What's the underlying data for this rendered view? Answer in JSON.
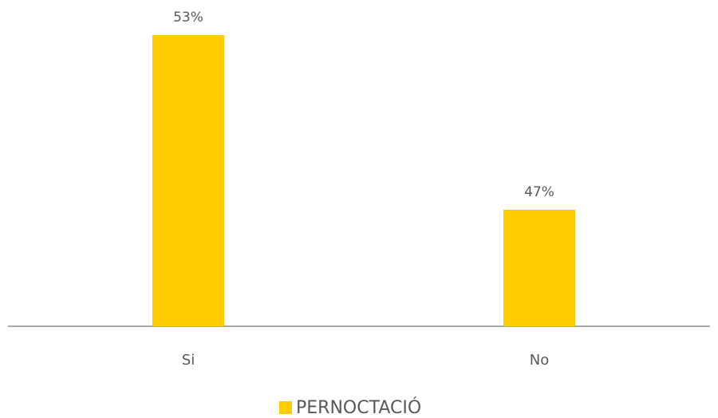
{
  "chart_data": {
    "type": "bar",
    "categories": [
      "Si",
      "No"
    ],
    "series": [
      {
        "name": "PERNOCTACIÓ",
        "color": "#ffcc00",
        "values": [
          53,
          47
        ],
        "value_labels": [
          "53%",
          "47%"
        ]
      }
    ],
    "ylim": [
      43,
      54
    ],
    "legend": "bottom"
  }
}
